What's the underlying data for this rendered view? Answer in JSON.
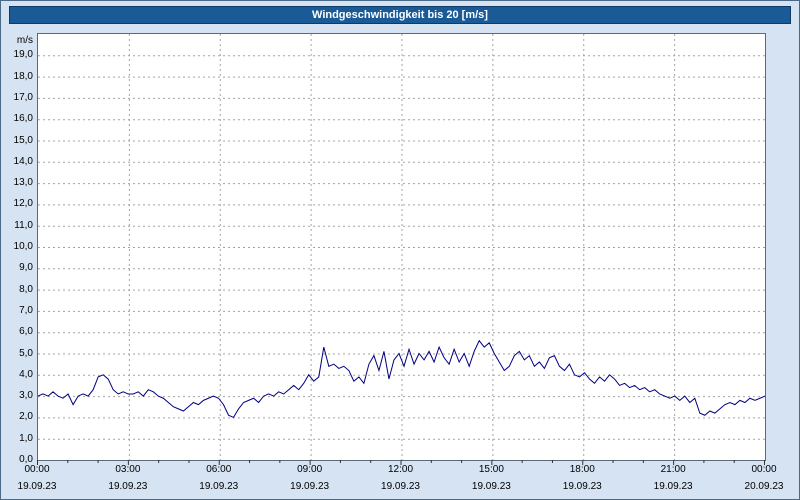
{
  "title_bar": {
    "text": "Windgeschwindigkeit bis 20 [m/s]"
  },
  "colors": {
    "titlebar": "#1a5a96",
    "page_background": "#d5e3f2",
    "plot_background": "#ffffff",
    "grid": "#a3a3a3",
    "axis_text": "#000000",
    "line": "#000080"
  },
  "chart_data": {
    "type": "line",
    "title": "Windgeschwindigkeit bis 20 [m/s]",
    "xlabel": "",
    "ylabel": "m/s",
    "ylim": [
      0,
      20
    ],
    "xlim_hours": [
      0,
      24
    ],
    "grid": true,
    "legend": "none",
    "y_tick_labels": [
      "0,0",
      "1,0",
      "2,0",
      "3,0",
      "4,0",
      "5,0",
      "6,0",
      "7,0",
      "8,0",
      "9,0",
      "10,0",
      "11,0",
      "12,0",
      "13,0",
      "14,0",
      "15,0",
      "16,0",
      "17,0",
      "18,0",
      "19,0"
    ],
    "x_ticks": [
      {
        "hour": 0,
        "label": "00:00",
        "date": "19.09.23"
      },
      {
        "hour": 3,
        "label": "03:00",
        "date": "19.09.23"
      },
      {
        "hour": 6,
        "label": "06:00",
        "date": "19.09.23"
      },
      {
        "hour": 9,
        "label": "09:00",
        "date": "19.09.23"
      },
      {
        "hour": 12,
        "label": "12:00",
        "date": "19.09.23"
      },
      {
        "hour": 15,
        "label": "15:00",
        "date": "19.09.23"
      },
      {
        "hour": 18,
        "label": "18:00",
        "date": "19.09.23"
      },
      {
        "hour": 21,
        "label": "21:00",
        "date": "19.09.23"
      },
      {
        "hour": 24,
        "label": "00:00",
        "date": "20.09.23"
      }
    ],
    "series": [
      {
        "name": "Windgeschwindigkeit",
        "unit": "m/s",
        "color": "#000080",
        "values": [
          3.0,
          3.1,
          3.0,
          3.2,
          3.0,
          2.9,
          3.1,
          2.6,
          3.0,
          3.1,
          3.0,
          3.3,
          3.9,
          4.0,
          3.8,
          3.3,
          3.1,
          3.2,
          3.1,
          3.1,
          3.2,
          3.0,
          3.3,
          3.2,
          3.0,
          2.9,
          2.7,
          2.5,
          2.4,
          2.3,
          2.5,
          2.7,
          2.6,
          2.8,
          2.9,
          3.0,
          2.9,
          2.6,
          2.1,
          2.0,
          2.4,
          2.7,
          2.8,
          2.9,
          2.7,
          3.0,
          3.1,
          3.0,
          3.2,
          3.1,
          3.3,
          3.5,
          3.3,
          3.6,
          4.0,
          3.7,
          3.9,
          5.3,
          4.4,
          4.5,
          4.3,
          4.4,
          4.2,
          3.7,
          3.9,
          3.6,
          4.5,
          4.9,
          4.2,
          5.1,
          3.8,
          4.7,
          5.0,
          4.4,
          5.2,
          4.5,
          5.0,
          4.7,
          5.1,
          4.6,
          5.3,
          4.8,
          4.5,
          5.2,
          4.6,
          5.0,
          4.4,
          5.1,
          5.6,
          5.3,
          5.5,
          5.0,
          4.6,
          4.2,
          4.4,
          4.9,
          5.1,
          4.7,
          4.9,
          4.4,
          4.6,
          4.3,
          4.8,
          4.9,
          4.4,
          4.2,
          4.5,
          4.0,
          3.9,
          4.1,
          3.8,
          3.6,
          3.9,
          3.7,
          4.0,
          3.8,
          3.5,
          3.6,
          3.4,
          3.5,
          3.3,
          3.4,
          3.2,
          3.3,
          3.1,
          3.0,
          2.9,
          3.0,
          2.8,
          3.0,
          2.7,
          2.9,
          2.2,
          2.1,
          2.3,
          2.2,
          2.4,
          2.6,
          2.7,
          2.6,
          2.8,
          2.7,
          2.9,
          2.8,
          2.9,
          3.0
        ]
      }
    ]
  }
}
